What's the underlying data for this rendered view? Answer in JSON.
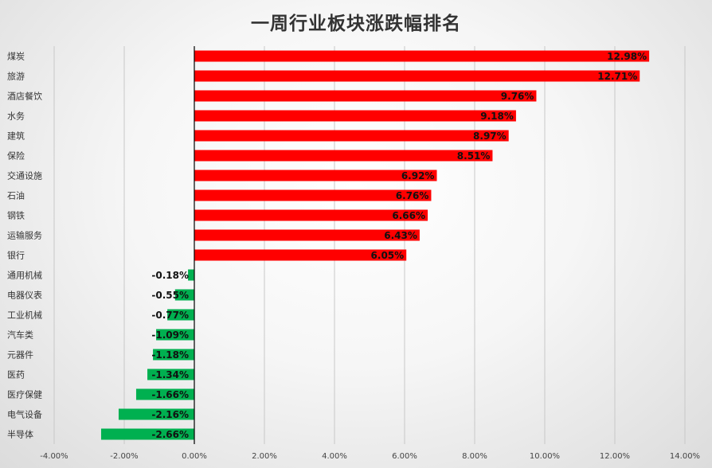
{
  "chart_data": {
    "type": "bar",
    "orientation": "horizontal",
    "title": "一周行业板块涨跌幅排名",
    "categories": [
      "煤炭",
      "旅游",
      "酒店餐饮",
      "水务",
      "建筑",
      "保险",
      "交通设施",
      "石油",
      "钢铁",
      "运输服务",
      "银行",
      "通用机械",
      "电器仪表",
      "工业机械",
      "汽车类",
      "元器件",
      "医药",
      "医疗保健",
      "电气设备",
      "半导体"
    ],
    "values": [
      12.98,
      12.71,
      9.76,
      9.18,
      8.97,
      8.51,
      6.92,
      6.76,
      6.66,
      6.43,
      6.05,
      -0.18,
      -0.55,
      -0.77,
      -1.09,
      -1.18,
      -1.34,
      -1.66,
      -2.16,
      -2.66
    ],
    "data_labels": [
      "12.98%",
      "12.71%",
      "9.76%",
      "9.18%",
      "8.97%",
      "8.51%",
      "6.92%",
      "6.76%",
      "6.66%",
      "6.43%",
      "6.05%",
      "-0.18%",
      "-0.55%",
      "-0.77%",
      "-1.09%",
      "-1.18%",
      "-1.34%",
      "-1.66%",
      "-2.16%",
      "-2.66%"
    ],
    "xlim": [
      -4,
      14
    ],
    "x_ticks": [
      -4,
      -2,
      0,
      2,
      4,
      6,
      8,
      10,
      12,
      14
    ],
    "x_tick_labels": [
      "-4.00%",
      "-2.00%",
      "0.00%",
      "2.00%",
      "4.00%",
      "6.00%",
      "8.00%",
      "10.00%",
      "12.00%",
      "14.00%"
    ],
    "xlabel": "",
    "ylabel": "",
    "grid": "vertical",
    "legend": "none",
    "colors": {
      "positive": "#ff0000",
      "negative": "#00b050",
      "grid": "#c8c8c8",
      "axis": "#000000"
    }
  }
}
